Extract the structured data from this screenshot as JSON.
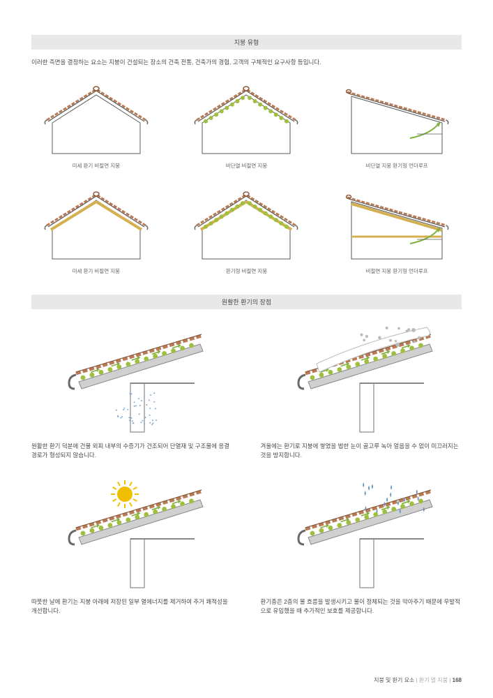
{
  "colors": {
    "headerBg": "#e8e8e8",
    "text": "#4a4a4a",
    "roofOutline": "#5a5a5a",
    "roofTile": "#b97a56",
    "roofTileDark": "#8a5a3a",
    "wall": "#ffffff",
    "insulation": "#9fbf3f",
    "insulationYellow": "#d4b050",
    "arrowGreen": "#7fb040",
    "gutter": "#6a6a6a",
    "beam": "#888888",
    "snow": "#ffffff",
    "snowOutline": "#bbbbbb",
    "sun": "#f0c000",
    "rain": "#6090c0",
    "moisture": "#80a8d0"
  },
  "section1": {
    "title": "지붕 유형",
    "intro": "이러한 측면을 결정하는 요소는 지붕이 건설되는 장소의 건축 전통, 건축가의 경험, 고객의 구체적인 요구사항 등입니다.",
    "roofs": [
      {
        "label": "미세 환기 비절연 지붕",
        "type": "plain"
      },
      {
        "label": "비단열 비절연 지붕",
        "type": "insulated-green"
      },
      {
        "label": "비단열 지붕 환기형 언더루프",
        "type": "shed-plain"
      },
      {
        "label": "미세 환기 비절연 지붕",
        "type": "yellow-layer"
      },
      {
        "label": "환기형 비절연 지붕",
        "type": "insulated-green-yellow"
      },
      {
        "label": "비절연 지붕 환기형 언더루프",
        "type": "shed-yellow"
      }
    ]
  },
  "section2": {
    "title": "원활한 환기의 장점",
    "advantages": [
      {
        "type": "moisture",
        "text": "원활한 환기 덕분에 건물 외피 내부의 수증기가 건조되어 단열재 및 구조물에 응결 경로가 형성되지 않습니다."
      },
      {
        "type": "snow",
        "text": "겨울에는 환기로 지붕에 쌓였을 법한 눈이 골고루 녹아 얼음을 수 없이 미끄러지는 것을 방지합니다."
      },
      {
        "type": "sun",
        "text": "따뜻한 날에 환기는 지붕 아래에 저장된 일부 열에너지를 제거하여 주거 쾌적성을 개선합니다."
      },
      {
        "type": "rain",
        "text": "환기층은 2층의 물 흐름을 발생시키고 물이 정체되는 것을 막아주기 때문에 우발적으로 유입했을 때 추가적인 보호를 제공합니다."
      }
    ]
  },
  "footer": {
    "left": "지붕 및 환기 요소",
    "mid": "환기 열 지붕",
    "page": "168"
  }
}
